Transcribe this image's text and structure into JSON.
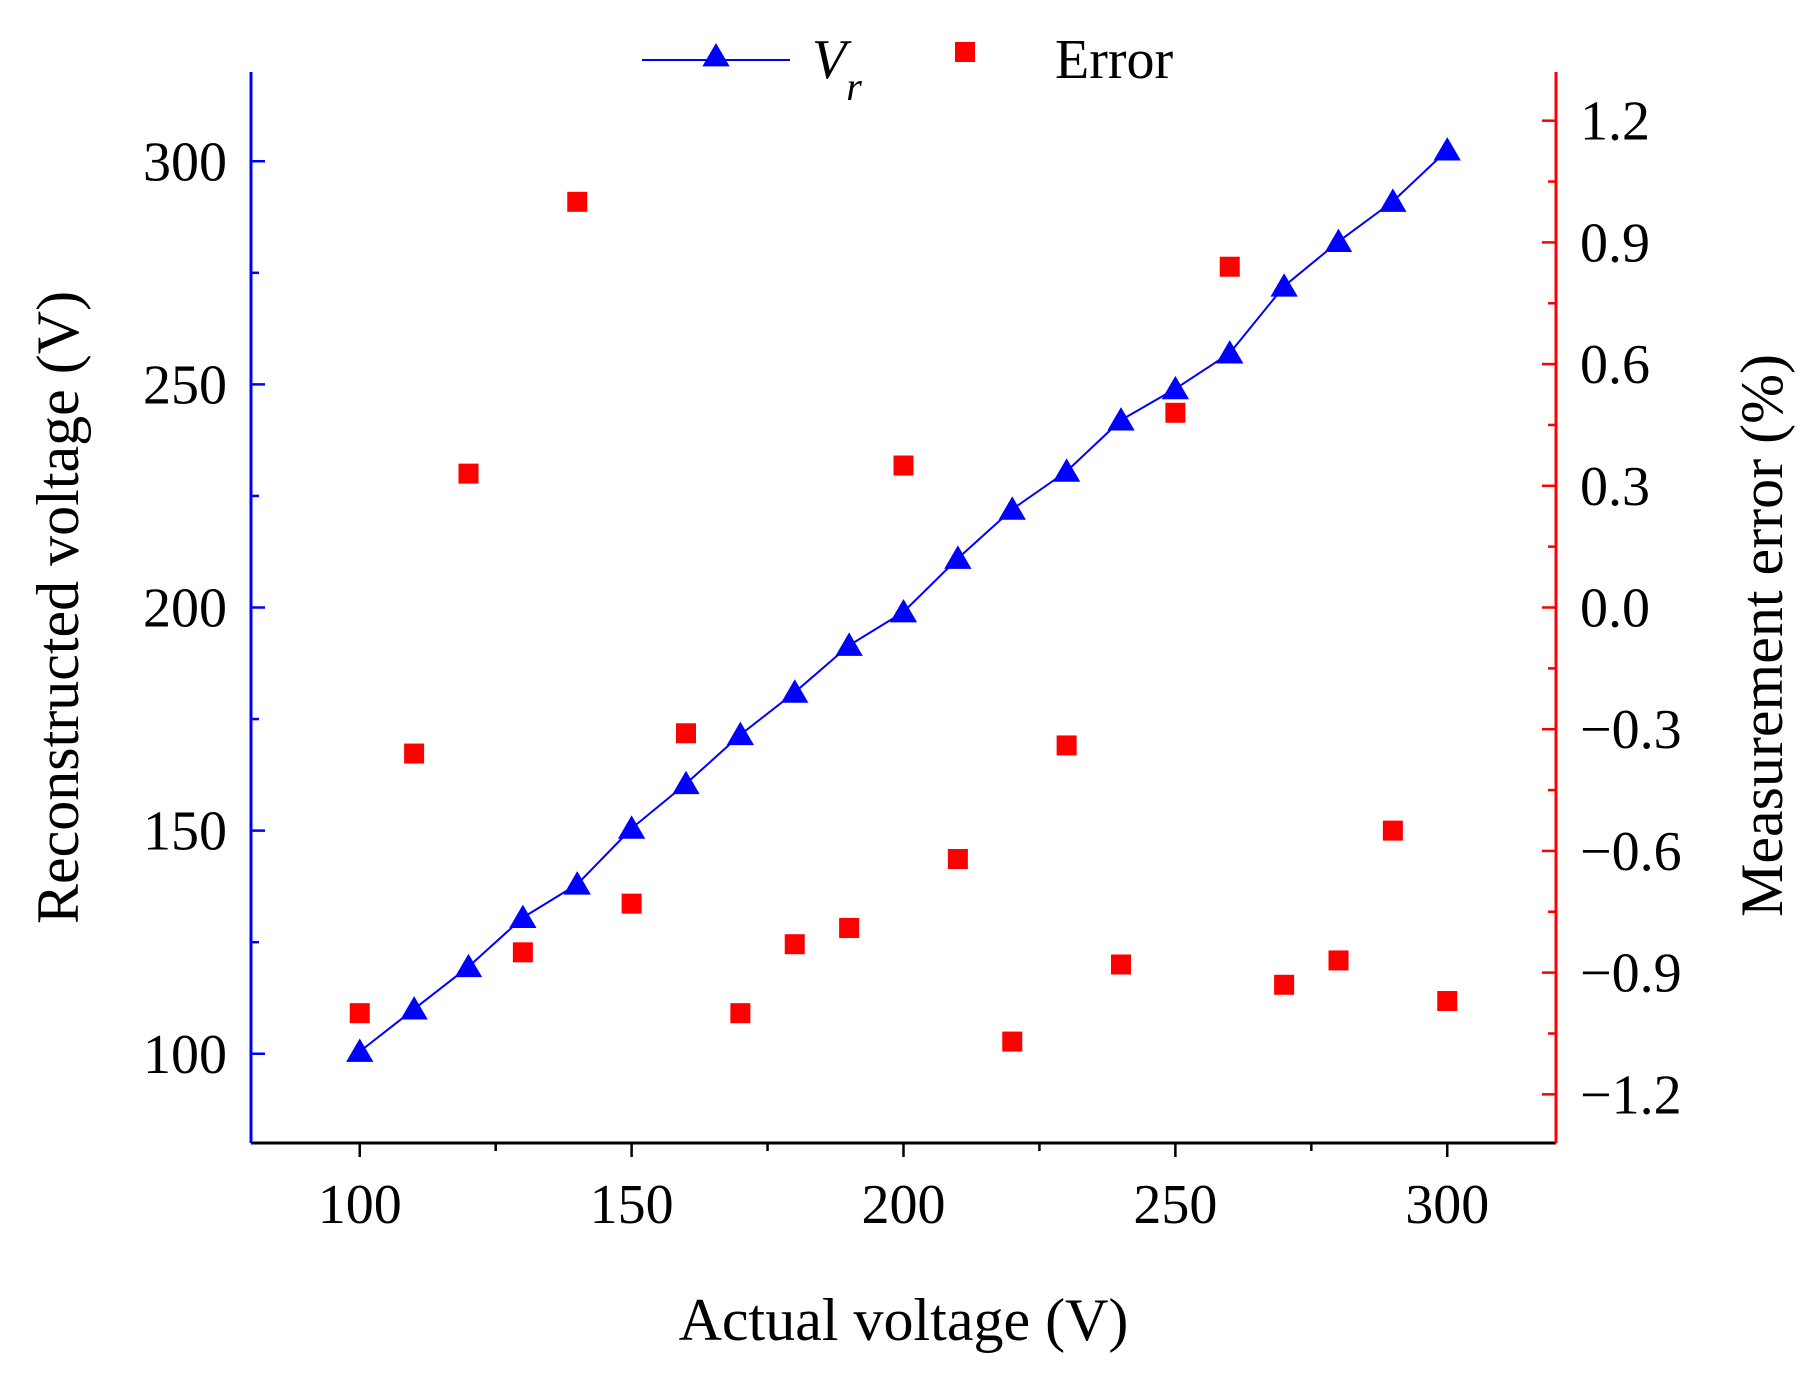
{
  "chart_data": {
    "type": "line+scatter",
    "dual_axis": true,
    "x": [
      100,
      110,
      120,
      130,
      140,
      150,
      160,
      170,
      180,
      190,
      200,
      210,
      220,
      230,
      240,
      250,
      260,
      270,
      280,
      290,
      300
    ],
    "series": [
      {
        "name": "V",
        "name_subscript": "r",
        "axis": "left",
        "style": "line-with-triangle-markers",
        "color": "#0000ff",
        "values": [
          100.5,
          110,
          119.5,
          130.5,
          138,
          150.5,
          160.5,
          171.5,
          181,
          191.5,
          199,
          211,
          222,
          230.5,
          242,
          249,
          257,
          272,
          282,
          291,
          302.5
        ]
      },
      {
        "name": "Error",
        "axis": "right",
        "style": "square-markers",
        "color": "#ff0000",
        "values": [
          -1.0,
          -0.36,
          0.33,
          -0.85,
          1.0,
          -0.73,
          -0.31,
          -1.0,
          -0.83,
          -0.79,
          0.35,
          -0.62,
          -1.07,
          -0.34,
          -0.88,
          0.48,
          0.84,
          -0.93,
          -0.87,
          -0.55,
          -0.97
        ]
      }
    ],
    "xlabel": "Actual voltage (V)",
    "ylabel": "Reconstructed voltage (V)",
    "y2label": "Measurement error (%)",
    "xlim": [
      80,
      320
    ],
    "ylim": [
      80,
      320
    ],
    "y2lim": [
      -1.32,
      1.32
    ],
    "xticks": [
      100,
      150,
      200,
      250,
      300
    ],
    "yticks": [
      100,
      150,
      200,
      250,
      300
    ],
    "y2ticks": [
      -1.2,
      -0.9,
      -0.6,
      -0.3,
      0.0,
      0.3,
      0.6,
      0.9,
      1.2
    ],
    "y2tick_labels": [
      "−1.2",
      "−0.9",
      "−0.6",
      "−0.3",
      "0.0",
      "0.3",
      "0.6",
      "0.9",
      "1.2"
    ],
    "legend_position": "top-center",
    "grid": false
  }
}
